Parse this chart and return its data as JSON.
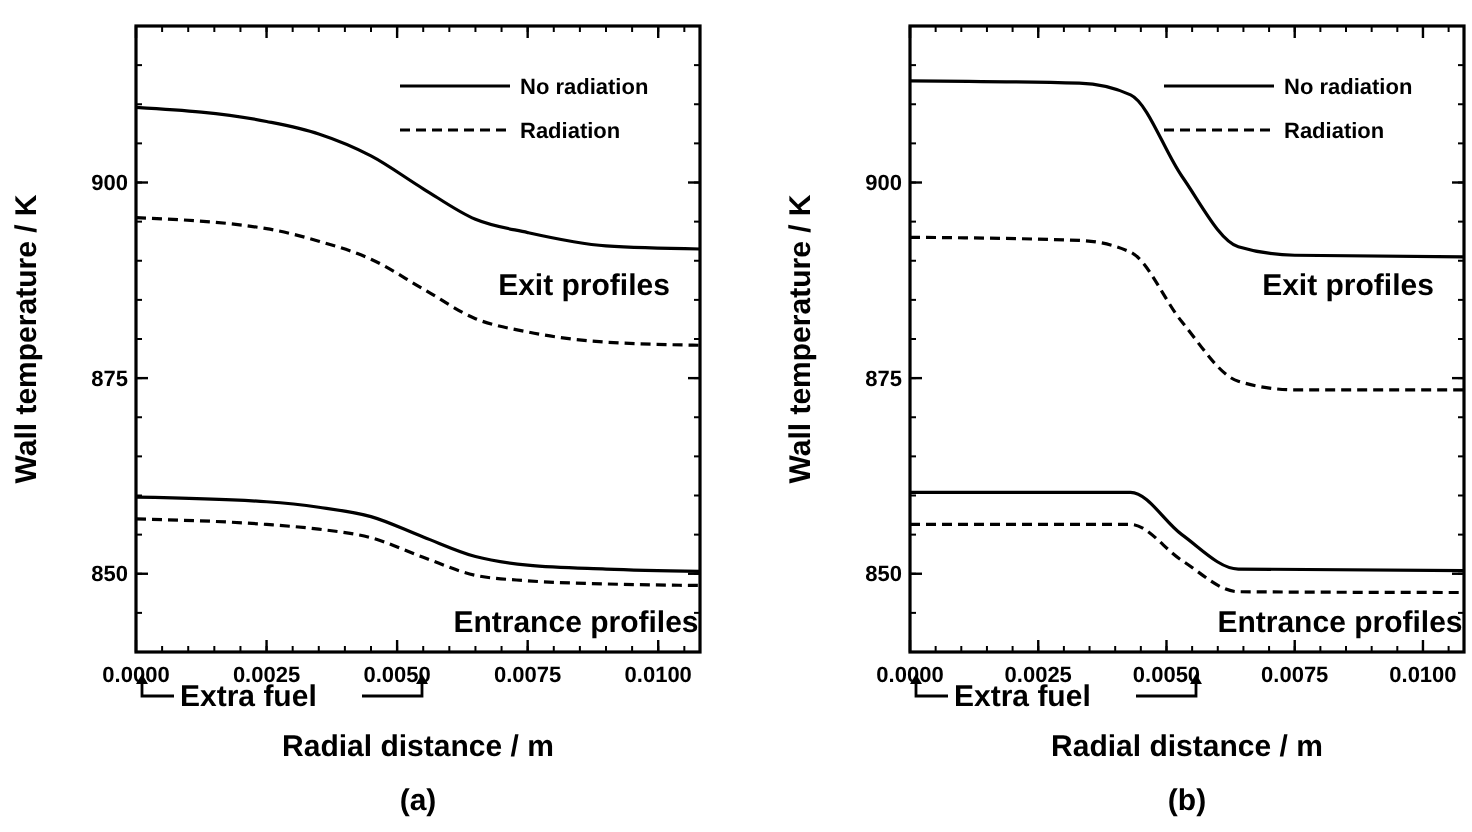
{
  "chart_data": [
    {
      "type": "line",
      "title": "(a)",
      "xlabel": "Radial distance / m",
      "ylabel": "Wall temperature / K",
      "xlim": [
        0,
        0.0108
      ],
      "ylim": [
        840,
        920
      ],
      "xticks": [
        {
          "value": 0,
          "label": "0.0000"
        },
        {
          "value": 0.0025,
          "label": "0.0025"
        },
        {
          "value": 0.005,
          "label": "0.0050"
        },
        {
          "value": 0.0075,
          "label": "0.0075"
        },
        {
          "value": 0.01,
          "label": "0.0100"
        }
      ],
      "yticks": [
        850,
        875,
        900
      ],
      "legend": "top right",
      "grid": false,
      "marker": "none",
      "annotations": [
        "Exit profiles",
        "Entrance profiles",
        "Extra fuel"
      ],
      "series": [
        {
          "name": "No radiation",
          "color": "#000000",
          "line_style": "solid",
          "x": [
            0,
            0.0025,
            0.0035,
            0.0045,
            0.0055,
            0.0065,
            0.0075,
            0.009,
            0.0108
          ],
          "values": [
            909.6,
            907.8,
            906.2,
            903.4,
            899.2,
            895.3,
            893.6,
            891.9,
            891.5
          ]
        },
        {
          "name": "Radiation",
          "color": "#000000",
          "line_style": "dashed",
          "x": [
            0,
            0.0025,
            0.0035,
            0.0045,
            0.0055,
            0.0065,
            0.0075,
            0.009,
            0.0108
          ],
          "values": [
            895.5,
            894.1,
            892.5,
            890.2,
            886.4,
            882.6,
            880.9,
            879.6,
            879.2
          ]
        },
        {
          "color": "#000000",
          "line_style": "solid",
          "x": [
            0,
            0.0025,
            0.0035,
            0.0045,
            0.0055,
            0.0065,
            0.0075,
            0.009,
            0.0108
          ],
          "values": [
            859.8,
            859.2,
            858.5,
            857.3,
            854.7,
            852.2,
            851.1,
            850.6,
            850.3
          ]
        },
        {
          "color": "#000000",
          "line_style": "dashed",
          "x": [
            0,
            0.0025,
            0.0035,
            0.0045,
            0.0055,
            0.0065,
            0.0075,
            0.009,
            0.0108
          ],
          "values": [
            857.0,
            856.3,
            855.7,
            854.6,
            852.1,
            849.8,
            849.1,
            848.7,
            848.5
          ]
        }
      ]
    },
    {
      "type": "line",
      "title": "(b)",
      "xlabel": "Radial distance / m",
      "ylabel": "Wall temperature / K",
      "xlim": [
        0,
        0.0108
      ],
      "ylim": [
        840,
        920
      ],
      "xticks": [
        {
          "value": 0,
          "label": "0.0000"
        },
        {
          "value": 0.0025,
          "label": "0.0025"
        },
        {
          "value": 0.005,
          "label": "0.0050"
        },
        {
          "value": 0.0075,
          "label": "0.0075"
        },
        {
          "value": 0.01,
          "label": "0.0100"
        }
      ],
      "yticks": [
        850,
        875,
        900
      ],
      "legend": "top right",
      "grid": false,
      "marker": "none",
      "annotations": [
        "Exit profiles",
        "Entrance profiles",
        "Extra fuel"
      ],
      "series": [
        {
          "name": "No radiation",
          "color": "#000000",
          "line_style": "solid",
          "x": [
            0,
            0.0033,
            0.0043,
            0.0053,
            0.0064,
            0.0075,
            0.0108
          ],
          "values": [
            913.0,
            912.7,
            911.2,
            900.8,
            891.8,
            890.7,
            890.5
          ]
        },
        {
          "name": "Radiation",
          "color": "#000000",
          "line_style": "dashed",
          "x": [
            0,
            0.0033,
            0.0043,
            0.0053,
            0.0064,
            0.0075,
            0.0108
          ],
          "values": [
            893.0,
            892.6,
            891.1,
            882.2,
            874.6,
            873.5,
            873.5
          ]
        },
        {
          "color": "#000000",
          "line_style": "solid",
          "x": [
            0,
            0.0043,
            0.0053,
            0.0064,
            0.0108
          ],
          "values": [
            860.4,
            860.4,
            855.0,
            850.6,
            850.4
          ]
        },
        {
          "color": "#000000",
          "line_style": "dashed",
          "x": [
            0,
            0.0043,
            0.0053,
            0.0064,
            0.0108
          ],
          "values": [
            856.3,
            856.3,
            851.7,
            847.7,
            847.6
          ]
        }
      ]
    }
  ]
}
